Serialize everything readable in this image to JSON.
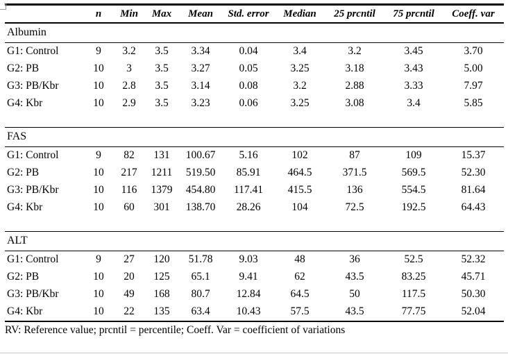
{
  "table": {
    "columns": [
      "",
      "n",
      "Min",
      "Max",
      "Mean",
      "Std. error",
      "Median",
      "25 prcntil",
      "75 prcntil",
      "Coeff. var"
    ],
    "sections": [
      {
        "label": "Albumin",
        "rows": [
          {
            "cells": [
              "G1: Control",
              "9",
              "3.2",
              "3.5",
              "3.34",
              "0.04",
              "3.4",
              "3.2",
              "3.45",
              "3.70"
            ]
          },
          {
            "cells": [
              "G2: PB",
              "10",
              "3",
              "3.5",
              "3.27",
              "0.05",
              "3.25",
              "3.18",
              "3.43",
              "5.00"
            ]
          },
          {
            "cells": [
              "G3: PB/Kbr",
              "10",
              "2.8",
              "3.5",
              "3.14",
              "0.08",
              "3.2",
              "2.88",
              "3.33",
              "7.97"
            ]
          },
          {
            "cells": [
              "G4: Kbr",
              "10",
              "2.9",
              "3.5",
              "3.23",
              "0.06",
              "3.25",
              "3.08",
              "3.4",
              "5.85"
            ]
          }
        ]
      },
      {
        "label": "FAS",
        "rows": [
          {
            "cells": [
              "G1: Control",
              "9",
              "82",
              "131",
              "100.67",
              "5.16",
              "102",
              "87",
              "109",
              "15.37"
            ]
          },
          {
            "cells": [
              "G2: PB",
              "10",
              "217",
              "1211",
              "519.50",
              "85.91",
              "464.5",
              "371.5",
              "569.5",
              "52.30"
            ]
          },
          {
            "cells": [
              "G3: PB/Kbr",
              "10",
              "116",
              "1379",
              "454.80",
              "117.41",
              "415.5",
              "136",
              "554.5",
              "81.64"
            ]
          },
          {
            "cells": [
              "G4: Kbr",
              "10",
              "60",
              "301",
              "138.70",
              "28.26",
              "104",
              "72.5",
              "192.5",
              "64.43"
            ]
          }
        ]
      },
      {
        "label": "ALT",
        "rows": [
          {
            "cells": [
              "G1: Control",
              "9",
              "27",
              "120",
              "51.78",
              "9.03",
              "48",
              "36",
              "52.5",
              "52.32"
            ]
          },
          {
            "cells": [
              "G2: PB",
              "10",
              "20",
              "125",
              "65.1",
              "9.41",
              "62",
              "43.5",
              "83.25",
              "45.71"
            ]
          },
          {
            "cells": [
              "G3: PB/Kbr",
              "10",
              "49",
              "168",
              "80.7",
              "12.84",
              "64.5",
              "50",
              "117.5",
              "50.30"
            ]
          },
          {
            "cells": [
              "G4: Kbr",
              "10",
              "22",
              "135",
              "63.4",
              "10.43",
              "57.5",
              "43.5",
              "77.75",
              "52.04"
            ]
          }
        ]
      }
    ]
  },
  "footnote": "RV: Reference value; prcntil = percentile; Coeff. Var = coefficient of variations",
  "colors": {
    "background": "#ffffff",
    "text": "#000000",
    "rule": "#000000",
    "corner_mark": "#9a9a9a"
  }
}
